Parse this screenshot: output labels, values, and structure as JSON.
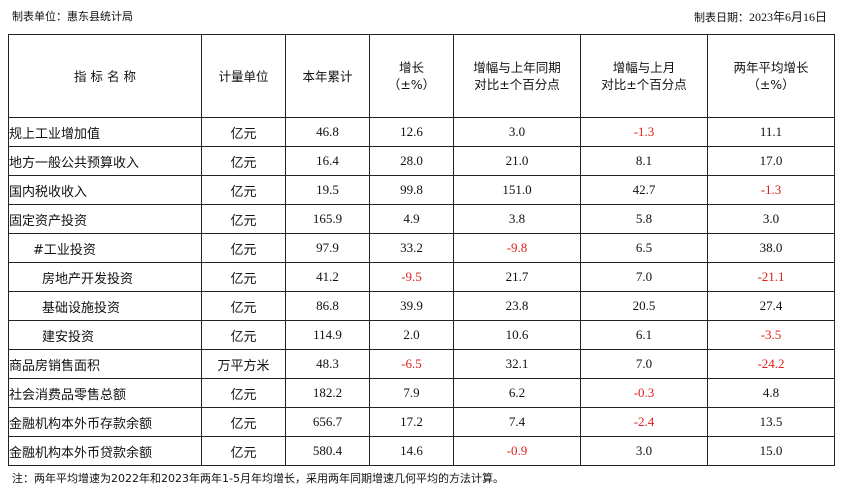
{
  "header": {
    "unit_label": "制表单位：",
    "unit_value": "惠东县统计局",
    "date_label": "制表日期：",
    "date_value": "2023年6月16日"
  },
  "table": {
    "columns": [
      {
        "line1": "指 标 名 称",
        "line2": ""
      },
      {
        "line1": "计量单位",
        "line2": ""
      },
      {
        "line1": "本年累计",
        "line2": ""
      },
      {
        "line1": "增长",
        "line2": "（±%）"
      },
      {
        "line1": "增幅与上年同期",
        "line2": "对比±个百分点"
      },
      {
        "line1": "增幅与上月",
        "line2": "对比±个百分点"
      },
      {
        "line1": "两年平均增长",
        "line2": "（±%）"
      }
    ],
    "rows": [
      {
        "name": "规上工业增加值",
        "unit": "亿元",
        "cumulative": "46.8",
        "growth": "12.6",
        "vs_last_year": "3.0",
        "vs_last_month": "-1.3",
        "two_year_avg": "11.1"
      },
      {
        "name": "地方一般公共预算收入",
        "unit": "亿元",
        "cumulative": "16.4",
        "growth": "28.0",
        "vs_last_year": "21.0",
        "vs_last_month": "8.1",
        "two_year_avg": "17.0"
      },
      {
        "name": "国内税收收入",
        "unit": "亿元",
        "cumulative": "19.5",
        "growth": "99.8",
        "vs_last_year": "151.0",
        "vs_last_month": "42.7",
        "two_year_avg": "-1.3"
      },
      {
        "name": "固定资产投资",
        "unit": "亿元",
        "cumulative": "165.9",
        "growth": "4.9",
        "vs_last_year": "3.8",
        "vs_last_month": "5.8",
        "two_year_avg": "3.0"
      },
      {
        "name": "#工业投资",
        "unit": "亿元",
        "cumulative": "97.9",
        "growth": "33.2",
        "vs_last_year": "-9.8",
        "vs_last_month": "6.5",
        "two_year_avg": "38.0"
      },
      {
        "name": "房地产开发投资",
        "unit": "亿元",
        "cumulative": "41.2",
        "growth": "-9.5",
        "vs_last_year": "21.7",
        "vs_last_month": "7.0",
        "two_year_avg": "-21.1"
      },
      {
        "name": "基础设施投资",
        "unit": "亿元",
        "cumulative": "86.8",
        "growth": "39.9",
        "vs_last_year": "23.8",
        "vs_last_month": "20.5",
        "two_year_avg": "27.4"
      },
      {
        "name": "建安投资",
        "unit": "亿元",
        "cumulative": "114.9",
        "growth": "2.0",
        "vs_last_year": "10.6",
        "vs_last_month": "6.1",
        "two_year_avg": "-3.5"
      },
      {
        "name": "商品房销售面积",
        "unit": "万平方米",
        "cumulative": "48.3",
        "growth": "-6.5",
        "vs_last_year": "32.1",
        "vs_last_month": "7.0",
        "two_year_avg": "-24.2"
      },
      {
        "name": "社会消费品零售总额",
        "unit": "亿元",
        "cumulative": "182.2",
        "growth": "7.9",
        "vs_last_year": "6.2",
        "vs_last_month": "-0.3",
        "two_year_avg": "4.8"
      },
      {
        "name": "金融机构本外币存款余额",
        "unit": "亿元",
        "cumulative": "656.7",
        "growth": "17.2",
        "vs_last_year": "7.4",
        "vs_last_month": "-2.4",
        "two_year_avg": "13.5"
      },
      {
        "name": "金融机构本外币贷款余额",
        "unit": "亿元",
        "cumulative": "580.4",
        "growth": "14.6",
        "vs_last_year": "-0.9",
        "vs_last_month": "3.0",
        "two_year_avg": "15.0"
      }
    ]
  },
  "note": "注：两年平均增速为2022年和2023年两年1-5月年均增长，采用两年同期增速几何平均的方法计算。",
  "colors": {
    "negative": "#e0201b",
    "text": "#111111",
    "border": "#222222"
  }
}
